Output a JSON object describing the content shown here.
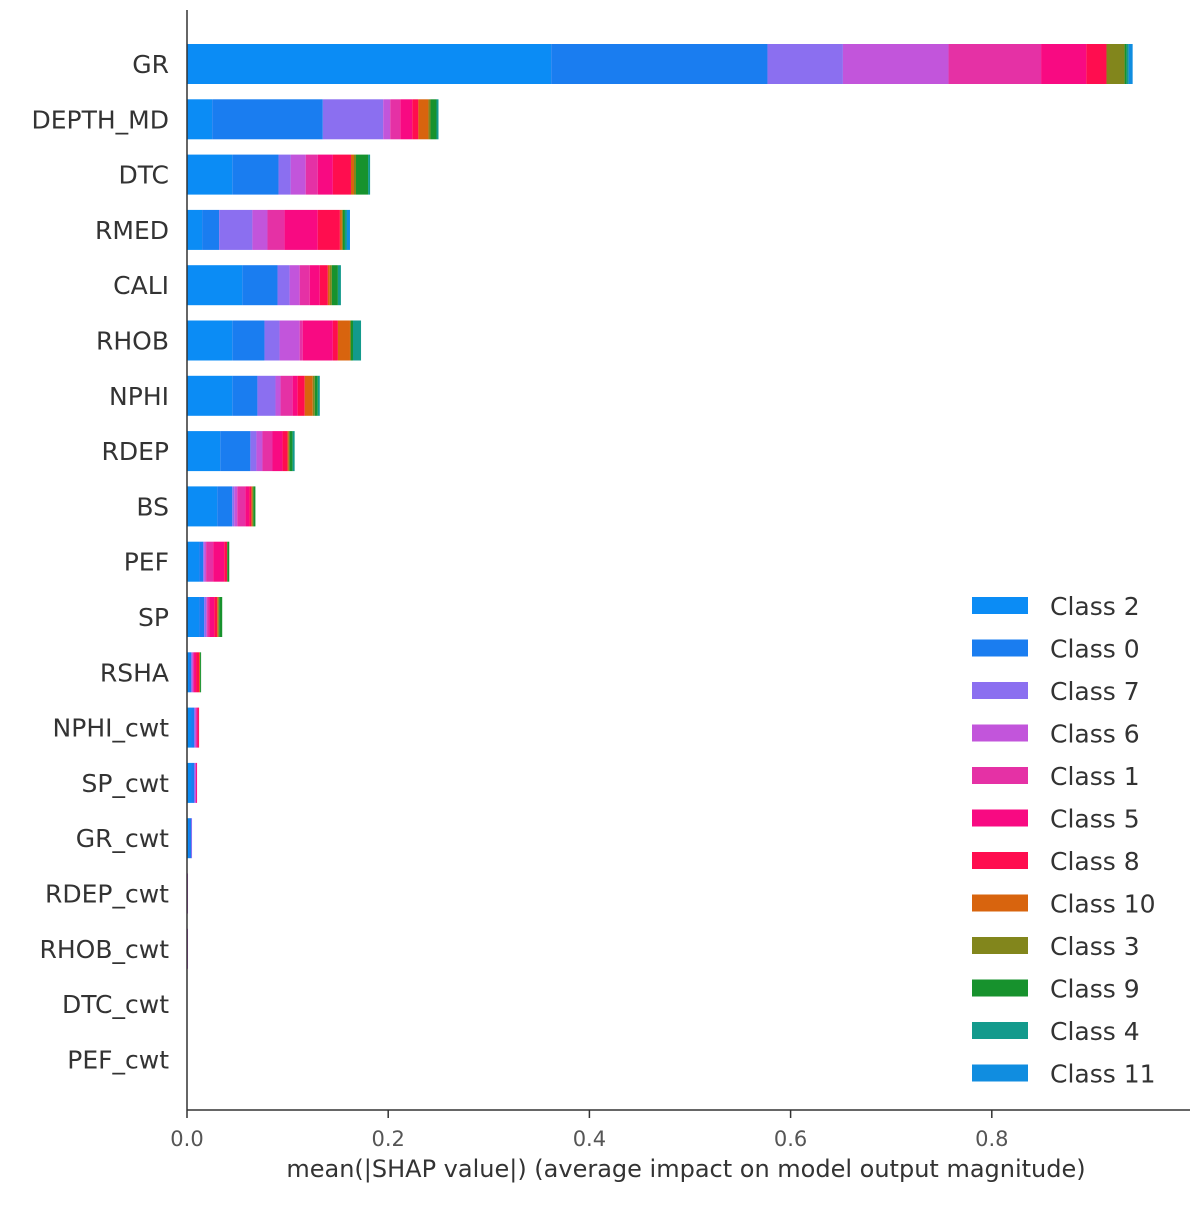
{
  "chart_data": {
    "type": "bar",
    "orientation": "horizontal",
    "stacked": true,
    "title": "",
    "xlabel": "mean(|SHAP value|) (average impact on model output magnitude)",
    "ylabel": "",
    "xlim": [
      0,
      0.97
    ],
    "xticks": [
      0.0,
      0.2,
      0.4,
      0.6,
      0.8
    ],
    "xtick_labels": [
      "0.0",
      "0.2",
      "0.4",
      "0.6",
      "0.8"
    ],
    "grid": false,
    "legend_position": "lower-right",
    "categories": [
      "GR",
      "DEPTH_MD",
      "DTC",
      "RMED",
      "CALI",
      "RHOB",
      "NPHI",
      "RDEP",
      "BS",
      "PEF",
      "SP",
      "RSHA",
      "NPHI_cwt",
      "SP_cwt",
      "GR_cwt",
      "RDEP_cwt",
      "RHOB_cwt",
      "DTC_cwt",
      "PEF_cwt"
    ],
    "series": [
      {
        "name": "Class 2",
        "color": "#0b8cf5",
        "values": [
          0.362,
          0.025,
          0.045,
          0.015,
          0.055,
          0.045,
          0.045,
          0.033,
          0.03,
          0.012,
          0.012,
          0.002,
          0.004,
          0.004,
          0.002,
          0.0,
          0.0,
          0.0,
          0.0
        ]
      },
      {
        "name": "Class 0",
        "color": "#1a7df0",
        "values": [
          0.215,
          0.11,
          0.046,
          0.017,
          0.035,
          0.032,
          0.025,
          0.03,
          0.015,
          0.004,
          0.005,
          0.002,
          0.003,
          0.003,
          0.002,
          0.0,
          0.0,
          0.0,
          0.0
        ]
      },
      {
        "name": "Class 7",
        "color": "#8b6ff0",
        "values": [
          0.075,
          0.06,
          0.012,
          0.033,
          0.012,
          0.015,
          0.018,
          0.006,
          0.002,
          0.001,
          0.002,
          0.001,
          0.001,
          0.001,
          0.001,
          0.0,
          0.0,
          0.0,
          0.0
        ]
      },
      {
        "name": "Class 6",
        "color": "#c255db",
        "values": [
          0.105,
          0.007,
          0.015,
          0.015,
          0.01,
          0.02,
          0.005,
          0.006,
          0.003,
          0.002,
          0.001,
          0.001,
          0.001,
          0.001,
          0.0,
          0.001,
          0.001,
          0.0,
          0.0
        ]
      },
      {
        "name": "Class 1",
        "color": "#e531a5",
        "values": [
          0.092,
          0.01,
          0.012,
          0.017,
          0.01,
          0.003,
          0.012,
          0.01,
          0.008,
          0.007,
          0.002,
          0.001,
          0.001,
          0.0,
          0.0,
          0.0,
          0.0,
          0.0,
          0.0
        ]
      },
      {
        "name": "Class 5",
        "color": "#f80a82",
        "values": [
          0.045,
          0.012,
          0.015,
          0.033,
          0.01,
          0.03,
          0.005,
          0.01,
          0.004,
          0.011,
          0.005,
          0.002,
          0.001,
          0.001,
          0.0,
          0.0,
          0.0,
          0.0,
          0.0
        ]
      },
      {
        "name": "Class 8",
        "color": "#ff0d4f",
        "values": [
          0.02,
          0.006,
          0.018,
          0.022,
          0.008,
          0.005,
          0.007,
          0.005,
          0.002,
          0.003,
          0.003,
          0.003,
          0.001,
          0.0,
          0.0,
          0.0,
          0.0,
          0.0,
          0.0
        ]
      },
      {
        "name": "Class 10",
        "color": "#d8640e",
        "values": [
          0.0,
          0.01,
          0.003,
          0.002,
          0.002,
          0.012,
          0.008,
          0.001,
          0.001,
          0.0,
          0.001,
          0.001,
          0.0,
          0.0,
          0.0,
          0.0,
          0.0,
          0.0,
          0.0
        ]
      },
      {
        "name": "Class 3",
        "color": "#82861c",
        "values": [
          0.018,
          0.002,
          0.002,
          0.001,
          0.002,
          0.001,
          0.002,
          0.001,
          0.001,
          0.0,
          0.001,
          0.0,
          0.0,
          0.0,
          0.0,
          0.0,
          0.0,
          0.0,
          0.0
        ]
      },
      {
        "name": "Class 9",
        "color": "#17922d",
        "values": [
          0.002,
          0.006,
          0.012,
          0.002,
          0.006,
          0.002,
          0.003,
          0.003,
          0.002,
          0.002,
          0.003,
          0.001,
          0.0,
          0.0,
          0.0,
          0.0,
          0.0,
          0.0,
          0.0
        ]
      },
      {
        "name": "Class 4",
        "color": "#139a8c",
        "values": [
          0.002,
          0.002,
          0.002,
          0.002,
          0.003,
          0.008,
          0.002,
          0.002,
          0.0,
          0.0,
          0.0,
          0.0,
          0.0,
          0.0,
          0.0,
          0.0,
          0.0,
          0.0,
          0.0
        ]
      },
      {
        "name": "Class 11",
        "color": "#108de0",
        "values": [
          0.004,
          0.0,
          0.0,
          0.003,
          0.0,
          0.0,
          0.0,
          0.0,
          0.0,
          0.0,
          0.0,
          0.0,
          0.0,
          0.0,
          0.0,
          0.0,
          0.0,
          0.0,
          0.0
        ]
      }
    ],
    "legend_order": [
      "Class 2",
      "Class 0",
      "Class 7",
      "Class 6",
      "Class 1",
      "Class 5",
      "Class 8",
      "Class 10",
      "Class 3",
      "Class 9",
      "Class 4",
      "Class 11"
    ]
  }
}
